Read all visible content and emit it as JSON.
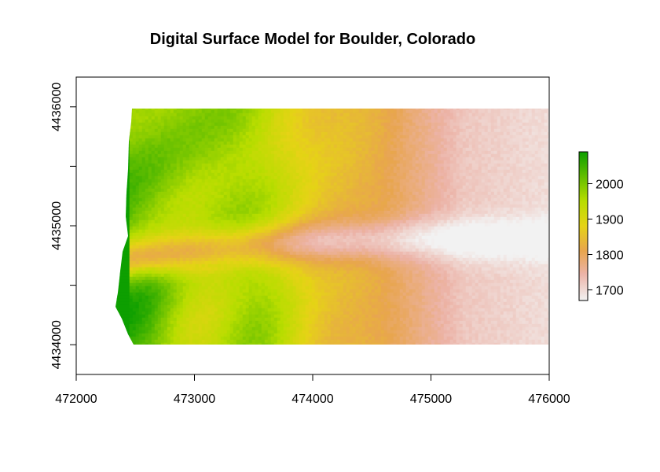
{
  "chart_data": {
    "type": "heatmap",
    "title": "Digital Surface Model for Boulder, Colorado",
    "xlabel": "",
    "ylabel": "",
    "xlim": [
      472000,
      476000
    ],
    "ylim": [
      4433750,
      4436250
    ],
    "x_ticks": [
      472000,
      473000,
      474000,
      475000,
      476000
    ],
    "x_tick_labels": [
      "472000",
      "473000",
      "474000",
      "475000",
      "476000"
    ],
    "y_ticks": [
      4434000,
      4434500,
      4435000,
      4435500,
      4436000
    ],
    "y_labeled_ticks": [
      4434000,
      4435000,
      4436000
    ],
    "y_tick_labels": [
      "4434000",
      "4435000",
      "4436000"
    ],
    "raster_extent": {
      "xmin": 472450,
      "xmax": 476000,
      "ymin": 4434000,
      "ymax": 4436000
    },
    "legend": {
      "position": "right",
      "range": [
        1670,
        2090
      ],
      "ticks": [
        1700,
        1800,
        1900,
        2000
      ],
      "tick_labels": [
        "1700",
        "1800",
        "1900",
        "2000"
      ],
      "color_stops": [
        {
          "value": 1670,
          "color": "#f2f2f2"
        },
        {
          "value": 1745,
          "color": "#ecb3a7"
        },
        {
          "value": 1810,
          "color": "#e8a54e"
        },
        {
          "value": 1880,
          "color": "#e6d316"
        },
        {
          "value": 1950,
          "color": "#b8dd00"
        },
        {
          "value": 2090,
          "color": "#0d9f00"
        }
      ]
    },
    "grid": false
  }
}
